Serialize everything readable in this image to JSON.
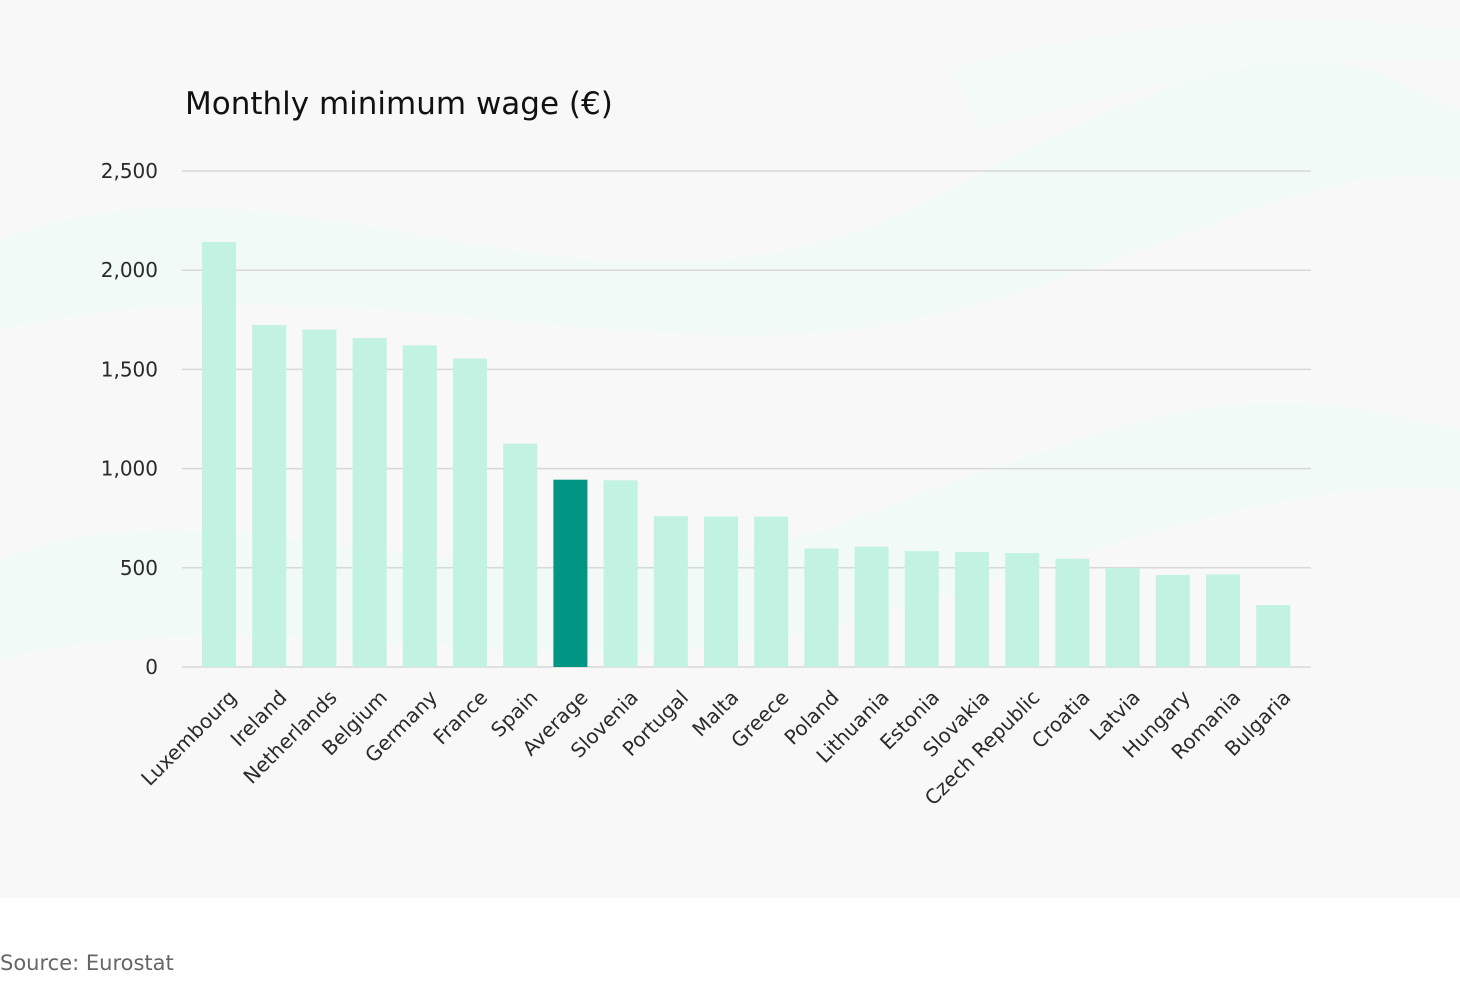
{
  "chart_data": {
    "type": "bar",
    "title": "Monthly minimum wage (€)",
    "xlabel": "",
    "ylabel": "",
    "ylim": [
      0,
      2500
    ],
    "yticks": [
      0,
      500,
      1000,
      1500,
      2000,
      2500
    ],
    "ytick_labels": [
      "0",
      "500",
      "1,000",
      "1,500",
      "2,000",
      "2,500"
    ],
    "grid": true,
    "legend": "none",
    "categories": [
      "Luxembourg",
      "Ireland",
      "Netherlands",
      "Belgium",
      "Germany",
      "France",
      "Spain",
      "Average",
      "Slovenia",
      "Portugal",
      "Malta",
      "Greece",
      "Poland",
      "Lithuania",
      "Estonia",
      "Slovakia",
      "Czech Republic",
      "Croatia",
      "Latvia",
      "Hungary",
      "Romania",
      "Bulgaria"
    ],
    "values": [
      2142,
      1724,
      1701,
      1658,
      1621,
      1555,
      1126,
      944,
      941,
      760,
      758,
      758,
      597,
      607,
      584,
      580,
      574,
      546,
      500,
      464,
      467,
      312
    ],
    "highlight_category": "Average",
    "colors": {
      "bar": "#c2f2e1",
      "highlight": "#009683",
      "highlight_label": "#009683",
      "grid": "#d8d8d8"
    }
  },
  "footer": {
    "source": "Source: Eurostat"
  }
}
